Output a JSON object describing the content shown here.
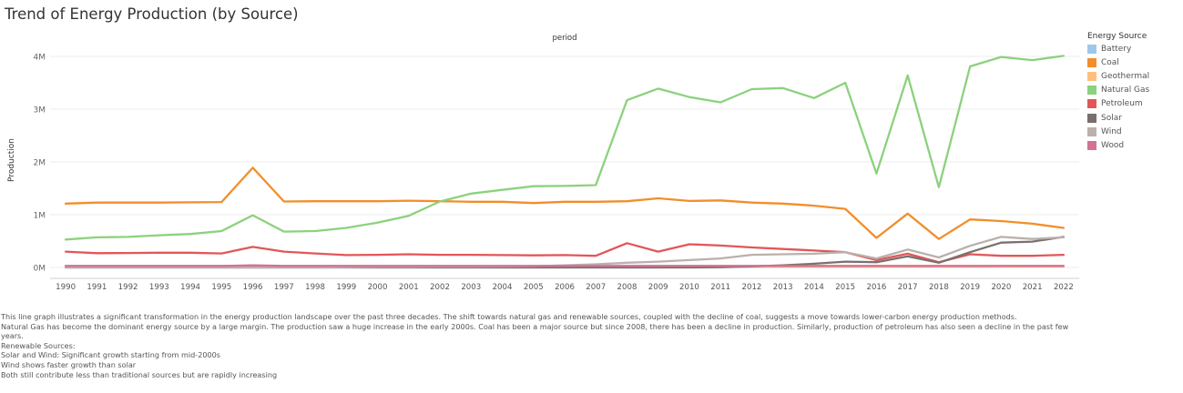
{
  "title": "Trend of Energy Production (by Source)",
  "chart_data": {
    "type": "line",
    "header": "period",
    "ylabel": "Production",
    "ylim": [
      0,
      4200000
    ],
    "yticks": [
      0,
      1000000,
      2000000,
      3000000,
      4000000
    ],
    "ytick_labels": [
      "0M",
      "1M",
      "2M",
      "3M",
      "4M"
    ],
    "grid": true,
    "legend_position": "right",
    "legend_title": "Energy Source",
    "x": [
      "1990",
      "1991",
      "1992",
      "1993",
      "1994",
      "1995",
      "1996",
      "1997",
      "1998",
      "1999",
      "2000",
      "2001",
      "2002",
      "2003",
      "2004",
      "2005",
      "2006",
      "2007",
      "2008",
      "2009",
      "2010",
      "2011",
      "2012",
      "2013",
      "2014",
      "2015",
      "2016",
      "2017",
      "2018",
      "2019",
      "2020",
      "2021",
      "2022"
    ],
    "series": [
      {
        "name": "Battery",
        "color": "#9fc8e8",
        "values": [
          0,
          0,
          0,
          0,
          0,
          0,
          0,
          0,
          0,
          0,
          0,
          0,
          0,
          0,
          0,
          0,
          0,
          0,
          0,
          0,
          10000,
          10000,
          10000,
          10000,
          10000,
          10000,
          10000,
          10000,
          10000,
          10000,
          15000,
          20000,
          25000
        ]
      },
      {
        "name": "Coal",
        "color": "#f28e2b",
        "values": [
          1210000,
          1230000,
          1230000,
          1230000,
          1235000,
          1240000,
          1890000,
          1250000,
          1255000,
          1255000,
          1255000,
          1265000,
          1255000,
          1245000,
          1245000,
          1220000,
          1245000,
          1245000,
          1255000,
          1310000,
          1260000,
          1270000,
          1230000,
          1210000,
          1170000,
          1110000,
          560000,
          1020000,
          540000,
          910000,
          880000,
          830000,
          750000
        ]
      },
      {
        "name": "Geothermal",
        "color": "#ffbe7d",
        "values": [
          15000,
          15000,
          15000,
          15000,
          15000,
          15000,
          15000,
          15000,
          15000,
          15000,
          15000,
          15000,
          15000,
          15000,
          15000,
          15000,
          15000,
          15000,
          15000,
          15000,
          15000,
          15000,
          15000,
          15000,
          15000,
          15000,
          15000,
          15000,
          15000,
          15000,
          15000,
          15000,
          15000
        ]
      },
      {
        "name": "Natural Gas",
        "color": "#8cd17d",
        "values": [
          530000,
          570000,
          580000,
          610000,
          635000,
          690000,
          990000,
          680000,
          690000,
          750000,
          850000,
          980000,
          1250000,
          1400000,
          1470000,
          1540000,
          1545000,
          1560000,
          3170000,
          3390000,
          3230000,
          3130000,
          3380000,
          3400000,
          3210000,
          3500000,
          1780000,
          3640000,
          1520000,
          3810000,
          3990000,
          3930000,
          4010000
        ]
      },
      {
        "name": "Petroleum",
        "color": "#e15759",
        "values": [
          300000,
          270000,
          275000,
          280000,
          280000,
          265000,
          390000,
          300000,
          265000,
          235000,
          240000,
          250000,
          240000,
          240000,
          235000,
          230000,
          235000,
          220000,
          460000,
          300000,
          440000,
          415000,
          380000,
          350000,
          320000,
          290000,
          140000,
          260000,
          100000,
          250000,
          220000,
          220000,
          240000
        ]
      },
      {
        "name": "Solar",
        "color": "#79706e",
        "values": [
          0,
          0,
          0,
          0,
          0,
          0,
          0,
          0,
          0,
          0,
          0,
          0,
          0,
          0,
          0,
          0,
          0,
          0,
          0,
          0,
          0,
          5000,
          20000,
          40000,
          70000,
          110000,
          100000,
          210000,
          90000,
          290000,
          470000,
          490000,
          580000
        ]
      },
      {
        "name": "Wind",
        "color": "#bab0ac",
        "values": [
          0,
          0,
          0,
          0,
          0,
          0,
          0,
          0,
          0,
          5000,
          10000,
          10000,
          15000,
          15000,
          20000,
          25000,
          40000,
          60000,
          90000,
          110000,
          140000,
          170000,
          240000,
          250000,
          260000,
          290000,
          170000,
          340000,
          190000,
          410000,
          580000,
          540000,
          570000
        ]
      },
      {
        "name": "Wood",
        "color": "#d37295",
        "values": [
          30000,
          30000,
          30000,
          30000,
          30000,
          30000,
          40000,
          30000,
          30000,
          30000,
          30000,
          30000,
          30000,
          30000,
          30000,
          30000,
          30000,
          30000,
          30000,
          30000,
          30000,
          30000,
          30000,
          30000,
          30000,
          30000,
          30000,
          30000,
          30000,
          30000,
          30000,
          30000,
          30000
        ]
      }
    ]
  },
  "description": [
    "This line graph illustrates a significant transformation in the energy production landscape over the past three decades. The shift towards natural gas and renewable sources, coupled with the decline of coal, suggests a move towards lower-carbon energy production methods.",
    "Natural Gas has become the dominant energy source by a large margin. The production saw a huge increase in the early 2000s. Coal has been a major source but since 2008, there has been a decline in production. Similarly, production of petroleum has also seen a decline in the past few years.",
    "Renewable Sources:",
    "Solar and Wind: Significant growth starting from mid-2000s",
    "Wind shows faster growth than solar",
    "Both still contribute less than traditional sources but are rapidly increasing"
  ]
}
